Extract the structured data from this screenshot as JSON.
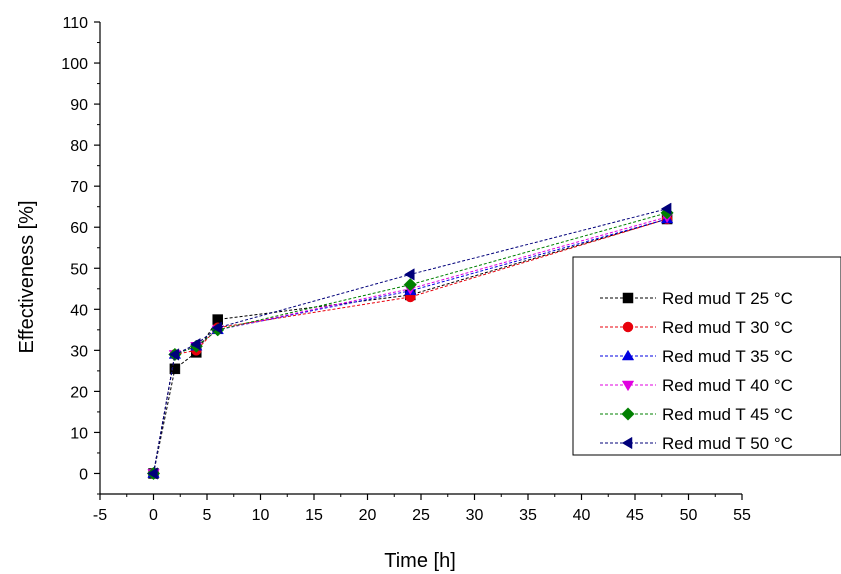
{
  "chart_data": {
    "type": "line",
    "xlabel": "Time [h]",
    "ylabel": "Effectiveness [%]",
    "xlim": [
      -5,
      55
    ],
    "ylim": [
      -5,
      110
    ],
    "xticks": [
      -5,
      0,
      5,
      10,
      15,
      20,
      25,
      30,
      35,
      40,
      45,
      50,
      55
    ],
    "yticks": [
      0,
      10,
      20,
      30,
      40,
      50,
      60,
      70,
      80,
      90,
      100,
      110
    ],
    "grid": false,
    "legend_position": "right",
    "x": [
      0,
      2,
      4,
      6,
      24,
      48
    ],
    "series": [
      {
        "name": "Red mud T 25 °C",
        "color": "#000000",
        "marker": "square",
        "values": [
          0,
          25.5,
          29.5,
          37.5,
          43.5,
          62
        ]
      },
      {
        "name": "Red mud T 30 °C",
        "color": "#e8000b",
        "marker": "circle",
        "values": [
          0,
          29,
          30,
          35.5,
          43,
          62
        ]
      },
      {
        "name": "Red mud T 35 °C",
        "color": "#0000e0",
        "marker": "triangle-up",
        "values": [
          0,
          29,
          31,
          35,
          44.5,
          62
        ]
      },
      {
        "name": "Red mud T 40 °C",
        "color": "#e000e0",
        "marker": "triangle-down",
        "values": [
          0,
          29,
          31,
          35,
          45,
          62.5
        ]
      },
      {
        "name": "Red mud T 45 °C",
        "color": "#008000",
        "marker": "diamond",
        "values": [
          0,
          29,
          31,
          35,
          46,
          63.5
        ]
      },
      {
        "name": "Red mud T 50 °C",
        "color": "#00007a",
        "marker": "triangle-left",
        "values": [
          0,
          29,
          31.5,
          35.5,
          48.5,
          64.5
        ]
      }
    ]
  }
}
